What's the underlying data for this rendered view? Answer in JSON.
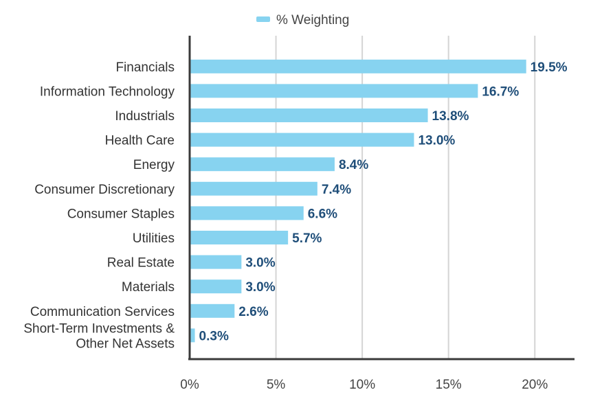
{
  "chart_data": {
    "type": "bar",
    "orientation": "horizontal",
    "categories": [
      [
        "Financials"
      ],
      [
        "Information Technology"
      ],
      [
        "Industrials"
      ],
      [
        "Health Care"
      ],
      [
        "Energy"
      ],
      [
        "Consumer Discretionary"
      ],
      [
        "Consumer Staples"
      ],
      [
        "Utilities"
      ],
      [
        "Real Estate"
      ],
      [
        "Materials"
      ],
      [
        "Communication Services"
      ],
      [
        "Short-Term Investments &",
        "Other Net Assets"
      ]
    ],
    "series": [
      {
        "name": "% Weighting",
        "values": [
          19.5,
          16.7,
          13.8,
          13.0,
          8.4,
          7.4,
          6.6,
          5.7,
          3.0,
          3.0,
          2.6,
          0.3
        ],
        "labels": [
          "19.5%",
          "16.7%",
          "13.8%",
          "13.0%",
          "8.4%",
          "7.4%",
          "6.6%",
          "5.7%",
          "3.0%",
          "3.0%",
          "2.6%",
          "0.3%"
        ]
      }
    ],
    "xlim": [
      0,
      22.3
    ],
    "xticks": [
      0,
      5,
      10,
      15,
      20
    ],
    "xtick_labels": [
      "0%",
      "5%",
      "10%",
      "15%",
      "20%"
    ],
    "grid": "vertical",
    "legend_position": "top-center",
    "colors": {
      "bar": "#87d3f0",
      "data_label": "#1f4e79",
      "axis": "#3a3a3a",
      "grid": "#d4d4d4"
    }
  }
}
